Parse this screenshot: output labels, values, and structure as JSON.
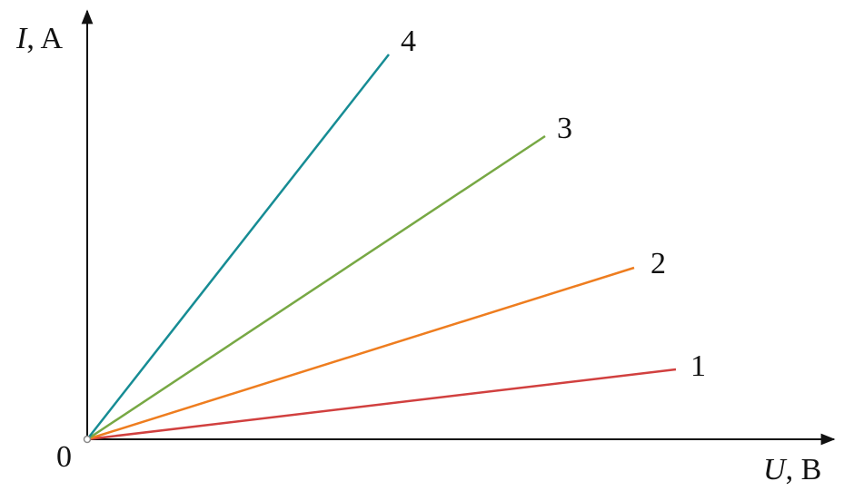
{
  "axes": {
    "y_label": [
      "I",
      ", A"
    ],
    "x_label": [
      "U",
      ", B"
    ],
    "origin": "0"
  },
  "lines": [
    {
      "label": "1"
    },
    {
      "label": "2"
    },
    {
      "label": "3"
    },
    {
      "label": "4"
    }
  ]
}
